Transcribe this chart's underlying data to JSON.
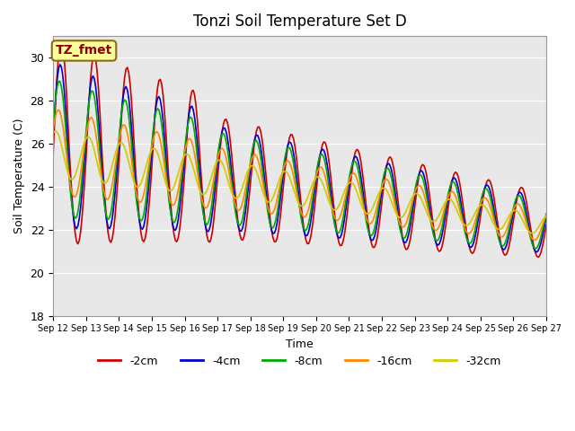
{
  "title": "Tonzi Soil Temperature Set D",
  "xlabel": "Time",
  "ylabel": "Soil Temperature (C)",
  "ylim": [
    18,
    31
  ],
  "yticks": [
    18,
    20,
    22,
    24,
    26,
    28,
    30
  ],
  "bg_color": "#e8e8e8",
  "line_colors": {
    "-2cm": "#cc0000",
    "-4cm": "#0000cc",
    "-8cm": "#00aa00",
    "-16cm": "#ff8800",
    "-32cm": "#cccc00"
  },
  "legend_labels": [
    "-2cm",
    "-4cm",
    "-8cm",
    "-16cm",
    "-32cm"
  ],
  "annotation_text": "TZ_fmet",
  "annotation_color": "#8b0000",
  "annotation_bg": "#ffff99",
  "annotation_border": "#8b6914"
}
